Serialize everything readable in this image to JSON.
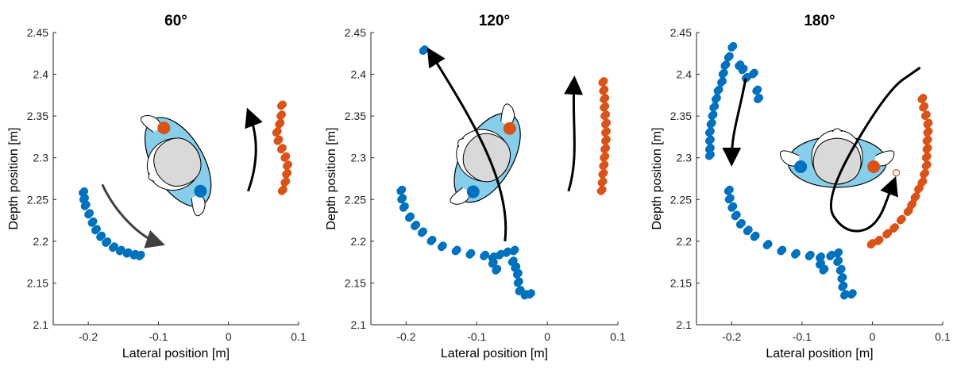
{
  "colors": {
    "blue": "#0072BD",
    "orange": "#D95319",
    "light_blue": "#87CEEB",
    "head_gray": "#D9D9D9",
    "arrow": "#000000",
    "arrow_dark": "#404040"
  },
  "chart_data": [
    {
      "type": "scatter",
      "title": "60°",
      "xlabel": "Lateral position [m]",
      "ylabel": "Depth position [m]",
      "xlim": [
        -0.25,
        0.1
      ],
      "ylim": [
        2.1,
        2.45
      ],
      "xticks": [
        "-0.2",
        "-0.1",
        "0",
        "0.1"
      ],
      "yticks": [
        "2.1",
        "2.15",
        "2.2",
        "2.25",
        "2.3",
        "2.35",
        "2.4",
        "2.45"
      ],
      "series": [
        {
          "color": "blue",
          "points": [
            [
              -0.208,
              2.258
            ],
            [
              -0.207,
              2.25
            ],
            [
              -0.205,
              2.242
            ],
            [
              -0.2,
              2.232
            ],
            [
              -0.195,
              2.222
            ],
            [
              -0.19,
              2.213
            ],
            [
              -0.183,
              2.205
            ],
            [
              -0.175,
              2.198
            ],
            [
              -0.165,
              2.192
            ],
            [
              -0.155,
              2.188
            ],
            [
              -0.145,
              2.185
            ],
            [
              -0.135,
              2.183
            ],
            [
              -0.127,
              2.182
            ]
          ]
        },
        {
          "color": "orange",
          "points": [
            [
              0.075,
              2.362
            ],
            [
              0.074,
              2.35
            ],
            [
              0.072,
              2.34
            ],
            [
              0.068,
              2.33
            ],
            [
              0.07,
              2.32
            ],
            [
              0.075,
              2.31
            ],
            [
              0.08,
              2.3
            ],
            [
              0.083,
              2.29
            ],
            [
              0.082,
              2.28
            ],
            [
              0.08,
              2.27
            ],
            [
              0.076,
              2.26
            ]
          ]
        }
      ],
      "arrows": [
        {
          "color": "arrow_dark",
          "path": [
            [
              -0.18,
              2.268
            ],
            [
              -0.16,
              2.232
            ],
            [
              -0.125,
              2.205
            ],
            [
              -0.1,
              2.198
            ]
          ]
        },
        {
          "color": "arrow",
          "path": [
            [
              0.028,
              2.26
            ],
            [
              0.045,
              2.3
            ],
            [
              0.04,
              2.33
            ],
            [
              0.03,
              2.352
            ]
          ]
        }
      ],
      "head": {
        "center": [
          -0.072,
          2.295
        ],
        "rotation_deg": 60
      }
    },
    {
      "type": "scatter",
      "title": "120°",
      "xlabel": "Lateral position [m]",
      "ylabel": "Depth position [m]",
      "xlim": [
        -0.25,
        0.1
      ],
      "ylim": [
        2.1,
        2.45
      ],
      "xticks": [
        "-0.2",
        "-0.1",
        "0",
        "0.1"
      ],
      "yticks": [
        "2.1",
        "2.15",
        "2.2",
        "2.25",
        "2.3",
        "2.35",
        "2.4",
        "2.45"
      ],
      "series": [
        {
          "color": "blue",
          "points": [
            [
              -0.208,
              2.26
            ],
            [
              -0.207,
              2.25
            ],
            [
              -0.204,
              2.24
            ],
            [
              -0.196,
              2.228
            ],
            [
              -0.188,
              2.218
            ],
            [
              -0.178,
              2.21
            ],
            [
              -0.165,
              2.2
            ],
            [
              -0.15,
              2.193
            ],
            [
              -0.13,
              2.188
            ],
            [
              -0.11,
              2.184
            ],
            [
              -0.09,
              2.182
            ],
            [
              -0.078,
              2.18
            ],
            [
              -0.068,
              2.183
            ],
            [
              -0.058,
              2.186
            ],
            [
              -0.048,
              2.188
            ],
            [
              -0.078,
              2.173
            ],
            [
              -0.073,
              2.165
            ],
            [
              -0.05,
              2.175
            ],
            [
              -0.046,
              2.168
            ],
            [
              -0.043,
              2.16
            ],
            [
              -0.042,
              2.15
            ],
            [
              -0.04,
              2.14
            ],
            [
              -0.032,
              2.135
            ],
            [
              -0.025,
              2.136
            ],
            [
              -0.176,
              2.428
            ]
          ]
        },
        {
          "color": "orange",
          "points": [
            [
              0.078,
              2.39
            ],
            [
              0.079,
              2.38
            ],
            [
              0.08,
              2.37
            ],
            [
              0.08,
              2.36
            ],
            [
              0.081,
              2.35
            ],
            [
              0.082,
              2.34
            ],
            [
              0.082,
              2.33
            ],
            [
              0.082,
              2.32
            ],
            [
              0.081,
              2.31
            ],
            [
              0.08,
              2.3
            ],
            [
              0.079,
              2.29
            ],
            [
              0.078,
              2.28
            ],
            [
              0.077,
              2.27
            ],
            [
              0.076,
              2.26
            ]
          ]
        }
      ],
      "arrows": [
        {
          "color": "arrow",
          "path": [
            [
              -0.06,
              2.2
            ],
            [
              -0.05,
              2.27
            ],
            [
              -0.11,
              2.35
            ],
            [
              -0.165,
              2.425
            ]
          ]
        },
        {
          "color": "arrow",
          "path": [
            [
              0.03,
              2.26
            ],
            [
              0.045,
              2.3
            ],
            [
              0.035,
              2.34
            ],
            [
              0.038,
              2.39
            ]
          ]
        }
      ],
      "head": {
        "center": [
          -0.085,
          2.3
        ],
        "rotation_deg": 120
      }
    },
    {
      "type": "scatter",
      "title": "180°",
      "xlabel": "Lateral position [m]",
      "ylabel": "Depth position [m]",
      "xlim": [
        -0.25,
        0.1
      ],
      "ylim": [
        2.1,
        2.45
      ],
      "xticks": [
        "-0.2",
        "-0.1",
        "0",
        "0.1"
      ],
      "yticks": [
        "2.1",
        "2.15",
        "2.2",
        "2.25",
        "2.3",
        "2.35",
        "2.4",
        "2.45"
      ],
      "series": [
        {
          "color": "blue",
          "points": [
            [
              -0.2,
              2.432
            ],
            [
              -0.205,
              2.42
            ],
            [
              -0.21,
              2.41
            ],
            [
              -0.213,
              2.4
            ],
            [
              -0.215,
              2.39
            ],
            [
              -0.22,
              2.38
            ],
            [
              -0.223,
              2.37
            ],
            [
              -0.226,
              2.36
            ],
            [
              -0.228,
              2.35
            ],
            [
              -0.23,
              2.34
            ],
            [
              -0.232,
              2.33
            ],
            [
              -0.232,
              2.32
            ],
            [
              -0.232,
              2.31
            ],
            [
              -0.232,
              2.302
            ],
            [
              -0.19,
              2.41
            ],
            [
              -0.185,
              2.405
            ],
            [
              -0.18,
              2.395
            ],
            [
              -0.17,
              2.4
            ],
            [
              -0.165,
              2.38
            ],
            [
              -0.163,
              2.37
            ],
            [
              -0.205,
              2.26
            ],
            [
              -0.204,
              2.25
            ],
            [
              -0.2,
              2.24
            ],
            [
              -0.195,
              2.23
            ],
            [
              -0.188,
              2.22
            ],
            [
              -0.178,
              2.212
            ],
            [
              -0.168,
              2.205
            ],
            [
              -0.15,
              2.195
            ],
            [
              -0.13,
              2.188
            ],
            [
              -0.11,
              2.184
            ],
            [
              -0.09,
              2.182
            ],
            [
              -0.075,
              2.18
            ],
            [
              -0.06,
              2.182
            ],
            [
              -0.05,
              2.185
            ],
            [
              -0.075,
              2.172
            ],
            [
              -0.07,
              2.165
            ],
            [
              -0.05,
              2.175
            ],
            [
              -0.046,
              2.165
            ],
            [
              -0.044,
              2.155
            ],
            [
              -0.043,
              2.145
            ],
            [
              -0.04,
              2.135
            ],
            [
              -0.03,
              2.136
            ]
          ]
        },
        {
          "color": "orange",
          "points": [
            [
              0.07,
              2.37
            ],
            [
              0.072,
              2.36
            ],
            [
              0.075,
              2.35
            ],
            [
              0.078,
              2.34
            ],
            [
              0.078,
              2.33
            ],
            [
              0.077,
              2.32
            ],
            [
              0.077,
              2.31
            ],
            [
              0.076,
              2.3
            ],
            [
              0.076,
              2.29
            ],
            [
              0.073,
              2.28
            ],
            [
              0.07,
              2.27
            ],
            [
              0.065,
              2.262
            ],
            [
              0.06,
              2.252
            ],
            [
              0.055,
              2.243
            ],
            [
              0.05,
              2.235
            ],
            [
              0.04,
              2.225
            ],
            [
              0.03,
              2.215
            ],
            [
              0.02,
              2.208
            ],
            [
              0.008,
              2.2
            ],
            [
              -0.002,
              2.196
            ]
          ]
        }
      ],
      "arrows": [
        {
          "color": "arrow",
          "path": [
            [
              -0.18,
              2.395
            ],
            [
              -0.19,
              2.35
            ],
            [
              -0.2,
              2.33
            ],
            [
              -0.2,
              2.298
            ]
          ]
        },
        {
          "color": "arrow",
          "path": [
            [
              0.068,
              2.408
            ],
            [
              0.02,
              2.38
            ],
            [
              -0.07,
              2.25
            ],
            [
              -0.04,
              2.21
            ],
            [
              0.005,
              2.215
            ],
            [
              0.03,
              2.27
            ]
          ]
        }
      ],
      "extra_points": [
        {
          "color": "orange",
          "x": 0.034,
          "y": 2.282,
          "hollow": true
        }
      ],
      "head": {
        "center": [
          -0.05,
          2.295
        ],
        "rotation_deg": 180
      }
    }
  ]
}
